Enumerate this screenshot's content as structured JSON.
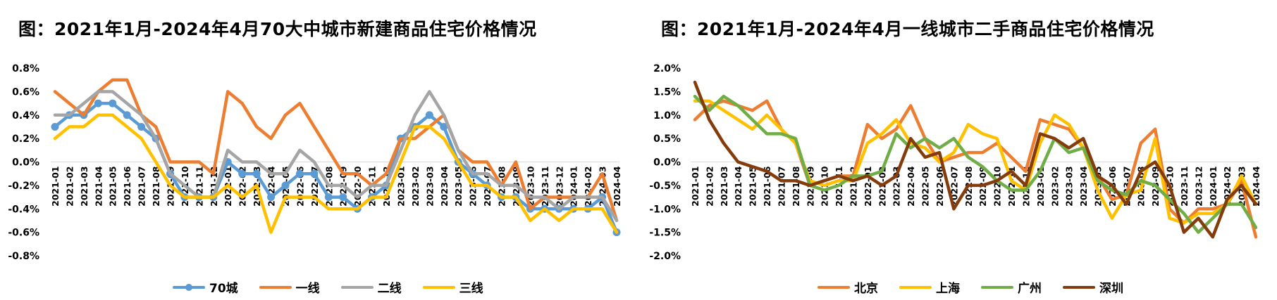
{
  "chart_data": [
    {
      "type": "line",
      "title": "图：2021年1月-2024年4月70大中城市新建商品住宅价格情况",
      "ylim": [
        -0.8,
        0.8
      ],
      "yticks": [
        "0.8%",
        "0.6%",
        "0.4%",
        "0.2%",
        "0.0%",
        "-0.2%",
        "-0.4%",
        "-0.6%",
        "-0.8%"
      ],
      "categories": [
        "2021-01",
        "2021-02",
        "2021-03",
        "2021-04",
        "2021-05",
        "2021-06",
        "2021-07",
        "2021-08",
        "2021-09",
        "2021-10",
        "2021-11",
        "2021-12",
        "2022-01",
        "2022-02",
        "2022-03",
        "2022-04",
        "2022-05",
        "2022-06",
        "2022-07",
        "2022-08",
        "2022-09",
        "2022-10",
        "2022-11",
        "2022-12",
        "2023-01",
        "2023-02",
        "2023-03",
        "2023-04",
        "2023-05",
        "2023-06",
        "2023-07",
        "2023-08",
        "2023-09",
        "2023-10",
        "2023-11",
        "2023-12",
        "2024-01",
        "2024-02",
        "2024-03",
        "2024-04"
      ],
      "grid": false,
      "legend_position": "bottom",
      "series": [
        {
          "name": "70城",
          "color": "#5b9bd5",
          "markers": true,
          "values": [
            0.3,
            0.4,
            0.4,
            0.5,
            0.5,
            0.4,
            0.3,
            0.2,
            -0.1,
            -0.3,
            -0.3,
            -0.3,
            0.0,
            -0.1,
            -0.1,
            -0.3,
            -0.2,
            -0.1,
            -0.1,
            -0.3,
            -0.3,
            -0.4,
            -0.3,
            -0.2,
            0.2,
            0.3,
            0.4,
            0.3,
            0.0,
            -0.1,
            -0.2,
            -0.3,
            -0.3,
            -0.4,
            -0.4,
            -0.4,
            -0.4,
            -0.4,
            -0.3,
            -0.6
          ]
        },
        {
          "name": "一线",
          "color": "#ed7d31",
          "markers": false,
          "values": [
            0.6,
            0.5,
            0.4,
            0.6,
            0.7,
            0.7,
            0.4,
            0.3,
            0.0,
            0.0,
            0.0,
            -0.1,
            0.6,
            0.5,
            0.3,
            0.2,
            0.4,
            0.5,
            0.3,
            0.1,
            -0.1,
            -0.1,
            -0.2,
            -0.1,
            0.2,
            0.2,
            0.3,
            0.4,
            0.1,
            0.0,
            0.0,
            -0.2,
            0.0,
            -0.4,
            -0.3,
            -0.3,
            -0.3,
            -0.3,
            -0.1,
            -0.5
          ]
        },
        {
          "name": "二线",
          "color": "#a5a5a5",
          "markers": false,
          "values": [
            0.4,
            0.4,
            0.5,
            0.6,
            0.6,
            0.5,
            0.4,
            0.2,
            -0.1,
            -0.2,
            -0.3,
            -0.3,
            0.1,
            0.0,
            0.0,
            -0.1,
            -0.1,
            0.1,
            0.0,
            -0.2,
            -0.2,
            -0.3,
            -0.2,
            -0.2,
            0.1,
            0.4,
            0.6,
            0.4,
            0.1,
            -0.1,
            -0.1,
            -0.2,
            -0.2,
            -0.3,
            -0.3,
            -0.4,
            -0.3,
            -0.3,
            -0.3,
            -0.5
          ]
        },
        {
          "name": "三线",
          "color": "#ffc000",
          "markers": false,
          "values": [
            0.2,
            0.3,
            0.3,
            0.4,
            0.4,
            0.3,
            0.2,
            0.0,
            -0.2,
            -0.3,
            -0.3,
            -0.3,
            -0.2,
            -0.3,
            -0.2,
            -0.6,
            -0.3,
            -0.3,
            -0.3,
            -0.4,
            -0.4,
            -0.4,
            -0.3,
            -0.3,
            0.0,
            0.3,
            0.3,
            0.2,
            0.0,
            -0.2,
            -0.2,
            -0.3,
            -0.3,
            -0.5,
            -0.4,
            -0.5,
            -0.4,
            -0.4,
            -0.4,
            -0.6
          ]
        }
      ]
    },
    {
      "type": "line",
      "title": "图：2021年1月-2024年4月一线城市二手商品住宅价格情况",
      "ylim": [
        -2.0,
        2.0
      ],
      "yticks": [
        "2.0%",
        "1.5%",
        "1.0%",
        "0.5%",
        "0.0%",
        "-0.5%",
        "-1.0%",
        "-1.5%",
        "-2.0%"
      ],
      "categories": [
        "2021-01",
        "2021-02",
        "2021-03",
        "2021-04",
        "2021-05",
        "2021-06",
        "2021-07",
        "2021-08",
        "2021-09",
        "2021-10",
        "2021-11",
        "2021-12",
        "2022-01",
        "2022-02",
        "2022-03",
        "2022-04",
        "2022-05",
        "2022-06",
        "2022-07",
        "2022-08",
        "2022-09",
        "2022-10",
        "2022-11",
        "2022-12",
        "2023-01",
        "2023-02",
        "2023-03",
        "2023-04",
        "2023-05",
        "2023-06",
        "2023-07",
        "2023-08",
        "2023-09",
        "2023-10",
        "2023-11",
        "2023-12",
        "2024-01",
        "2024-02",
        "2024-03",
        "2024-04"
      ],
      "grid": false,
      "legend_position": "bottom",
      "series": [
        {
          "name": "北京",
          "color": "#ed7d31",
          "markers": false,
          "values": [
            0.9,
            1.2,
            1.3,
            1.2,
            1.1,
            1.3,
            0.7,
            0.4,
            -0.5,
            -0.4,
            -0.3,
            -0.3,
            0.8,
            0.5,
            0.7,
            1.2,
            0.5,
            0.0,
            0.1,
            0.2,
            0.2,
            0.4,
            0.1,
            -0.2,
            0.9,
            0.8,
            0.7,
            0.3,
            -0.3,
            -0.8,
            -0.7,
            0.4,
            0.7,
            -1.0,
            -1.3,
            -1.0,
            -1.0,
            -0.9,
            -0.4,
            -1.6
          ]
        },
        {
          "name": "上海",
          "color": "#ffc000",
          "markers": false,
          "values": [
            1.3,
            1.3,
            1.1,
            0.9,
            0.7,
            1.0,
            0.7,
            0.4,
            -0.4,
            -0.5,
            -0.4,
            -0.4,
            0.4,
            0.6,
            0.9,
            0.4,
            0.3,
            0.0,
            0.2,
            0.8,
            0.6,
            0.5,
            -0.4,
            -0.6,
            0.4,
            1.0,
            0.8,
            0.3,
            -0.6,
            -1.2,
            -0.7,
            -0.6,
            0.5,
            -1.2,
            -1.3,
            -1.1,
            -1.1,
            -0.9,
            -0.3,
            -0.9
          ]
        },
        {
          "name": "广州",
          "color": "#70ad47",
          "markers": false,
          "values": [
            1.4,
            1.1,
            1.4,
            1.2,
            0.9,
            0.6,
            0.6,
            0.5,
            -0.5,
            -0.6,
            -0.5,
            -0.3,
            -0.3,
            -0.2,
            0.6,
            0.3,
            0.5,
            0.3,
            0.5,
            0.1,
            -0.1,
            -0.4,
            -0.6,
            -0.6,
            -0.2,
            0.5,
            0.2,
            0.3,
            -0.4,
            -0.6,
            -0.7,
            -0.4,
            -0.5,
            -0.8,
            -1.1,
            -1.5,
            -1.2,
            -0.9,
            -0.9,
            -1.4
          ]
        },
        {
          "name": "深圳",
          "color": "#843c0c",
          "markers": false,
          "values": [
            1.7,
            0.9,
            0.4,
            0.0,
            -0.1,
            -0.2,
            -0.4,
            -0.4,
            -0.5,
            -0.4,
            -0.3,
            -0.4,
            -0.3,
            -0.5,
            -0.3,
            0.5,
            0.1,
            0.2,
            -1.0,
            -0.5,
            -0.5,
            -0.4,
            -0.2,
            -0.5,
            0.6,
            0.5,
            0.3,
            0.5,
            -0.3,
            -0.5,
            -0.9,
            -0.2,
            0.0,
            -0.5,
            -1.5,
            -1.2,
            -1.6,
            -0.8,
            -0.5,
            -0.9
          ]
        }
      ]
    }
  ]
}
